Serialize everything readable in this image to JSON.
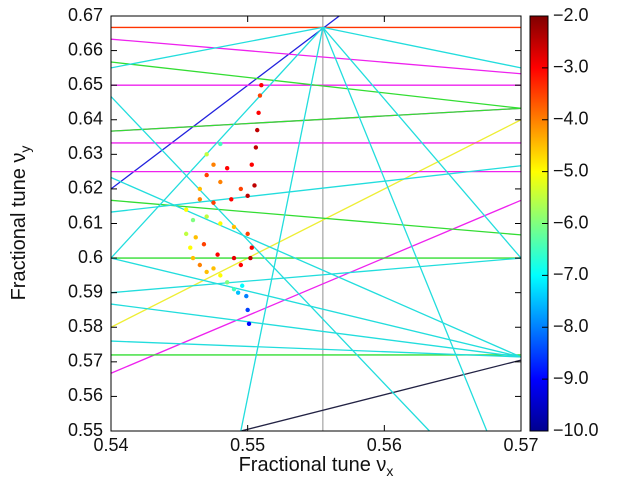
{
  "chart_data": {
    "type": "scatter",
    "xlabel": "Fractional tune ν",
    "xlabel_sub": "x",
    "ylabel": "Fractional tune ν",
    "ylabel_sub": "y",
    "xlim": [
      0.54,
      0.57
    ],
    "ylim": [
      0.55,
      0.67
    ],
    "xticks": [
      0.54,
      0.55,
      0.56,
      0.57
    ],
    "yticks": [
      0.55,
      0.56,
      0.57,
      0.58,
      0.59,
      0.6,
      0.61,
      0.62,
      0.63,
      0.64,
      0.65,
      0.66,
      0.67
    ],
    "colorbar": {
      "lim": [
        -10,
        -2
      ],
      "colormap": "jet",
      "ticks": [
        {
          "value": -2,
          "label": "−2.0"
        },
        {
          "value": -3,
          "label": "−3.0"
        },
        {
          "value": -4,
          "label": "−4.0"
        },
        {
          "value": -5,
          "label": "−5.0"
        },
        {
          "value": -6,
          "label": "−6.0"
        },
        {
          "value": -7,
          "label": "−7.0"
        },
        {
          "value": -8,
          "label": "−8.0"
        },
        {
          "value": -9,
          "label": "−9.0"
        },
        {
          "value": -10,
          "label": "−10.0"
        }
      ]
    },
    "resonances": [
      {
        "color": "#aaaaaa",
        "x": [
          0.5555,
          0.5555
        ],
        "y": [
          0.55,
          0.67
        ]
      },
      {
        "color": "#ff3300",
        "x": [
          0.54,
          0.57
        ],
        "y": [
          0.6667,
          0.6667
        ]
      },
      {
        "color": "#2222dd",
        "x": [
          0.54,
          0.5567
        ],
        "y": [
          0.62,
          0.67
        ]
      },
      {
        "color": "#222244",
        "x": [
          0.5495,
          0.57
        ],
        "y": [
          0.55,
          0.5705
        ]
      },
      {
        "color": "#eeee33",
        "x": [
          0.54,
          0.57
        ],
        "y": [
          0.58,
          0.64
        ]
      },
      {
        "color": "#ee22ee",
        "x": [
          0.54,
          0.57
        ],
        "y": [
          0.5667,
          0.6167
        ]
      },
      {
        "color": "#ee22ee",
        "x": [
          0.54,
          0.57
        ],
        "y": [
          0.65,
          0.65
        ]
      },
      {
        "color": "#ee22ee",
        "x": [
          0.54,
          0.57
        ],
        "y": [
          0.6333,
          0.6333
        ]
      },
      {
        "color": "#ee22ee",
        "x": [
          0.54,
          0.57
        ],
        "y": [
          0.625,
          0.625
        ]
      },
      {
        "color": "#ee22ee",
        "x": [
          0.54,
          0.57
        ],
        "y": [
          0.6633,
          0.6533
        ]
      },
      {
        "color": "#ee22ee",
        "x": [
          0.54,
          0.57
        ],
        "y": [
          0.6367,
          0.6433
        ]
      },
      {
        "color": "#33dd33",
        "x": [
          0.54,
          0.57
        ],
        "y": [
          0.6,
          0.6
        ]
      },
      {
        "color": "#33dd33",
        "x": [
          0.54,
          0.57
        ],
        "y": [
          0.572,
          0.572
        ]
      },
      {
        "color": "#33dd33",
        "x": [
          0.54,
          0.57
        ],
        "y": [
          0.6367,
          0.6433
        ]
      },
      {
        "color": "#33dd33",
        "x": [
          0.54,
          0.57
        ],
        "y": [
          0.6167,
          0.6067
        ]
      },
      {
        "color": "#33dd33",
        "x": [
          0.54,
          0.57
        ],
        "y": [
          0.6567,
          0.6433
        ]
      },
      {
        "color": "#22dddd",
        "x": [
          0.5555,
          0.54
        ],
        "y": [
          0.6667,
          0.655
        ]
      },
      {
        "color": "#22dddd",
        "x": [
          0.5555,
          0.57
        ],
        "y": [
          0.6667,
          0.655
        ]
      },
      {
        "color": "#22dddd",
        "x": [
          0.5555,
          0.54
        ],
        "y": [
          0.6667,
          0.6
        ]
      },
      {
        "color": "#22dddd",
        "x": [
          0.5555,
          0.57
        ],
        "y": [
          0.6667,
          0.6
        ]
      },
      {
        "color": "#22dddd",
        "x": [
          0.5555,
          0.5495
        ],
        "y": [
          0.6667,
          0.55
        ]
      },
      {
        "color": "#22dddd",
        "x": [
          0.5555,
          0.5675
        ],
        "y": [
          0.6667,
          0.55
        ]
      },
      {
        "color": "#22dddd",
        "x": [
          0.54,
          0.57
        ],
        "y": [
          0.6233,
          0.5714
        ]
      },
      {
        "color": "#22dddd",
        "x": [
          0.54,
          0.57
        ],
        "y": [
          0.6,
          0.5714
        ]
      },
      {
        "color": "#22dddd",
        "x": [
          0.54,
          0.57
        ],
        "y": [
          0.5867,
          0.5714
        ]
      },
      {
        "color": "#22dddd",
        "x": [
          0.54,
          0.57
        ],
        "y": [
          0.576,
          0.5714
        ]
      },
      {
        "color": "#22dddd",
        "x": [
          0.54,
          0.57
        ],
        "y": [
          0.6133,
          0.6267
        ]
      },
      {
        "color": "#22dddd",
        "x": [
          0.54,
          0.57
        ],
        "y": [
          0.59,
          0.6
        ]
      },
      {
        "color": "#22dddd",
        "x": [
          0.54,
          0.5633
        ],
        "y": [
          0.6467,
          0.55
        ]
      }
    ],
    "x": [
      0.5501,
      0.55,
      0.5499,
      0.5496,
      0.549,
      0.5485,
      0.548,
      0.5475,
      0.547,
      0.5465,
      0.546,
      0.5458,
      0.5462,
      0.5468,
      0.5478,
      0.549,
      0.5495,
      0.5502,
      0.5503,
      0.55,
      0.549,
      0.548,
      0.547,
      0.546,
      0.5455,
      0.5465,
      0.5475,
      0.5488,
      0.55,
      0.5505,
      0.5495,
      0.548,
      0.547,
      0.5485,
      0.5503,
      0.5506,
      0.5507,
      0.5508,
      0.5509,
      0.551,
      0.5475,
      0.5465,
      0.5455,
      0.5493,
      0.548,
      0.547
    ],
    "y": [
      0.581,
      0.585,
      0.589,
      0.592,
      0.591,
      0.593,
      0.595,
      0.597,
      0.596,
      0.598,
      0.6,
      0.603,
      0.606,
      0.604,
      0.601,
      0.6,
      0.598,
      0.6,
      0.603,
      0.607,
      0.609,
      0.61,
      0.612,
      0.611,
      0.614,
      0.617,
      0.616,
      0.617,
      0.618,
      0.621,
      0.62,
      0.622,
      0.624,
      0.626,
      0.627,
      0.632,
      0.637,
      0.642,
      0.647,
      0.65,
      0.627,
      0.62,
      0.607,
      0.59,
      0.633,
      0.63
    ],
    "values": [
      -9,
      -8.5,
      -8,
      -7,
      -6.5,
      -6,
      -5,
      -4.5,
      -4.5,
      -4,
      -4.5,
      -5,
      -4.5,
      -3.5,
      -3,
      -2.8,
      -3,
      -2.5,
      -3,
      -3.5,
      -4.5,
      -5,
      -5.5,
      -6,
      -5,
      -4,
      -3.5,
      -3,
      -2.5,
      -2.5,
      -3.5,
      -4,
      -3.5,
      -3,
      -3,
      -2.5,
      -2.5,
      -3,
      -3.5,
      -3,
      -4,
      -4.5,
      -5.5,
      -7.5,
      -6.5,
      -5.5
    ]
  }
}
